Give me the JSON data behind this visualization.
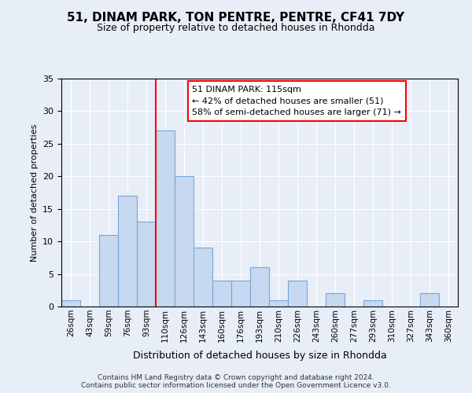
{
  "title": "51, DINAM PARK, TON PENTRE, PENTRE, CF41 7DY",
  "subtitle": "Size of property relative to detached houses in Rhondda",
  "xlabel": "Distribution of detached houses by size in Rhondda",
  "ylabel": "Number of detached properties",
  "bin_labels": [
    "26sqm",
    "43sqm",
    "59sqm",
    "76sqm",
    "93sqm",
    "110sqm",
    "126sqm",
    "143sqm",
    "160sqm",
    "176sqm",
    "193sqm",
    "210sqm",
    "226sqm",
    "243sqm",
    "260sqm",
    "277sqm",
    "293sqm",
    "310sqm",
    "327sqm",
    "343sqm",
    "360sqm"
  ],
  "bar_values": [
    1,
    0,
    11,
    17,
    13,
    27,
    20,
    9,
    4,
    4,
    6,
    1,
    4,
    0,
    2,
    0,
    1,
    0,
    0,
    2
  ],
  "bar_color": "#c6d9f0",
  "bar_edge_color": "#7aa6d4",
  "vline_color": "red",
  "ylim": [
    0,
    35
  ],
  "yticks": [
    0,
    5,
    10,
    15,
    20,
    25,
    30,
    35
  ],
  "annotation_line1": "51 DINAM PARK: 115sqm",
  "annotation_line2": "← 42% of detached houses are smaller (51)",
  "annotation_line3": "58% of semi-detached houses are larger (71) →",
  "annotation_box_color": "white",
  "annotation_box_edge": "red",
  "footer_text": "Contains HM Land Registry data © Crown copyright and database right 2024.\nContains public sector information licensed under the Open Government Licence v3.0.",
  "bg_color": "#e8eef8"
}
